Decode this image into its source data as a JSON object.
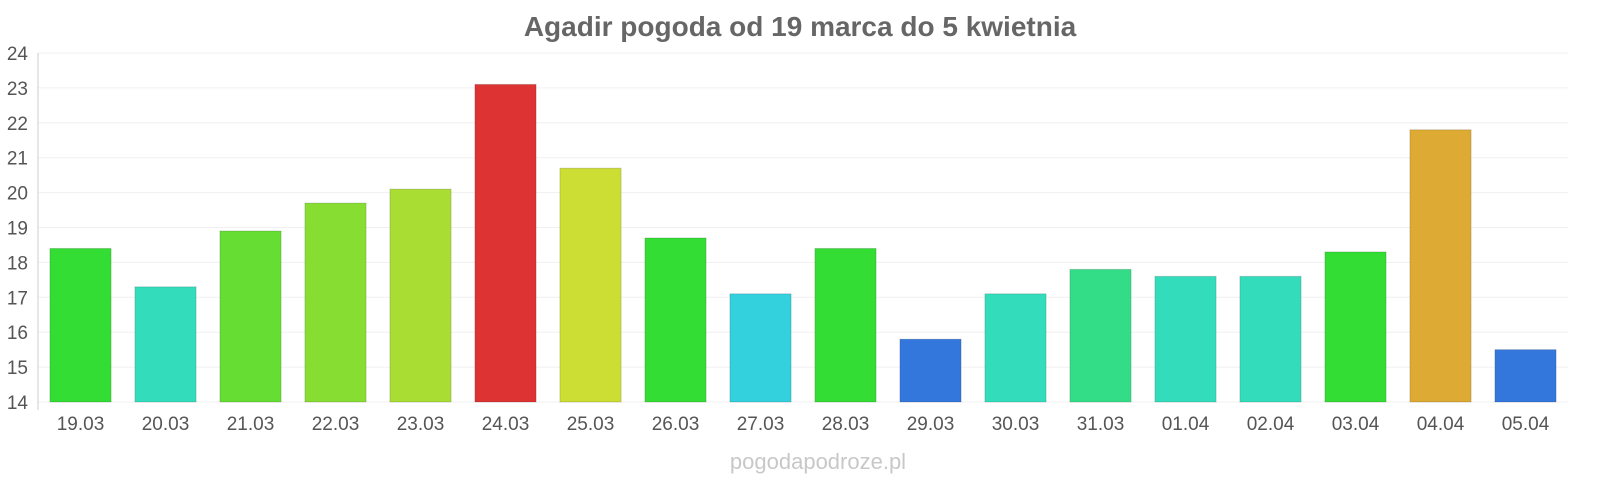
{
  "chart_data": {
    "type": "bar",
    "title": "Agadir pogoda od 19 marca do 5 kwietnia",
    "xlabel": "",
    "ylabel": "",
    "ylim": [
      14,
      24
    ],
    "yticks": [
      "14",
      "15",
      "16",
      "17",
      "18",
      "19",
      "20",
      "21",
      "22",
      "23",
      "24"
    ],
    "grid": true,
    "categories": [
      "19.03",
      "20.03",
      "21.03",
      "22.03",
      "23.03",
      "24.03",
      "25.03",
      "26.03",
      "27.03",
      "28.03",
      "29.03",
      "30.03",
      "31.03",
      "01.04",
      "02.04",
      "03.04",
      "04.04",
      "05.04"
    ],
    "values": [
      18.4,
      17.3,
      18.9,
      19.7,
      20.1,
      23.1,
      20.7,
      18.7,
      17.1,
      18.4,
      15.8,
      17.1,
      17.8,
      17.6,
      17.6,
      18.3,
      21.8,
      15.5
    ],
    "colors": [
      "#33dd33",
      "#33ddbb",
      "#66dd33",
      "#88dd33",
      "#aadd33",
      "#dd3333",
      "#ccdd33",
      "#33dd33",
      "#33d0dd",
      "#33dd33",
      "#3377dd",
      "#33ddbb",
      "#33dd88",
      "#33ddbb",
      "#33ddbb",
      "#33dd33",
      "#ddaa33",
      "#3377dd"
    ]
  },
  "footer": {
    "watermark": "pogodapodroze.pl"
  }
}
